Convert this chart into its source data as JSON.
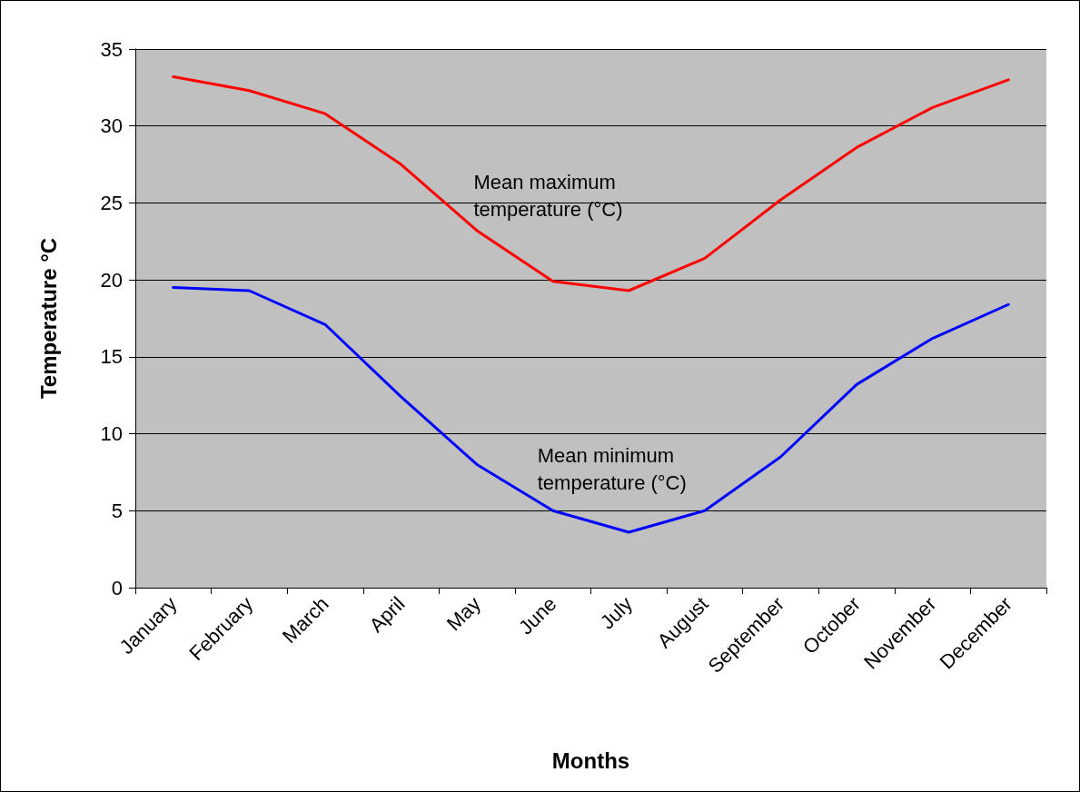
{
  "chart_data": {
    "type": "line",
    "xlabel": "Months",
    "ylabel": "Temperature °C",
    "categories": [
      "January",
      "February",
      "March",
      "April",
      "May",
      "June",
      "July",
      "August",
      "September",
      "October",
      "November",
      "December"
    ],
    "series": [
      {
        "name": "Mean maximum temperature (°C)",
        "color": "#ff0000",
        "values": [
          33.2,
          32.3,
          30.8,
          27.5,
          23.2,
          19.9,
          19.3,
          21.4,
          25.2,
          28.6,
          31.2,
          33.0
        ]
      },
      {
        "name": "Mean minimum temperature (°C)",
        "color": "#0000ff",
        "values": [
          19.5,
          19.3,
          17.1,
          12.4,
          8.0,
          5.0,
          3.6,
          5.0,
          8.5,
          13.2,
          16.2,
          18.4
        ]
      }
    ],
    "ylim": [
      0,
      35
    ],
    "yticks": [
      0,
      5,
      10,
      15,
      20,
      25,
      30,
      35
    ],
    "grid": "y",
    "legend": false,
    "marker": "none",
    "line_style": "solid"
  }
}
